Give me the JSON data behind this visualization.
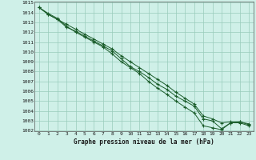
{
  "xlabel": "Graphe pression niveau de la mer (hPa)",
  "ylim": [
    1002,
    1015
  ],
  "xlim": [
    -0.5,
    23.5
  ],
  "yticks": [
    1002,
    1003,
    1004,
    1005,
    1006,
    1007,
    1008,
    1009,
    1010,
    1011,
    1012,
    1013,
    1014,
    1015
  ],
  "xticks": [
    0,
    1,
    2,
    3,
    4,
    5,
    6,
    7,
    8,
    9,
    10,
    11,
    12,
    13,
    14,
    15,
    16,
    17,
    18,
    19,
    20,
    21,
    22,
    23
  ],
  "background_color": "#cff0e8",
  "grid_color": "#99ccbb",
  "line_color": "#1a5c2a",
  "line1_x": [
    0,
    1,
    2,
    3,
    4,
    5,
    6,
    7,
    8,
    9,
    10,
    11,
    12,
    13,
    14,
    15,
    16,
    17,
    18,
    19,
    20,
    21,
    22,
    23
  ],
  "line1_y": [
    1014.5,
    1013.8,
    1013.3,
    1012.5,
    1012.1,
    1011.6,
    1011.1,
    1010.6,
    1010.1,
    1009.3,
    1008.5,
    1008.0,
    1007.4,
    1006.7,
    1006.2,
    1005.5,
    1005.0,
    1004.5,
    1003.2,
    1003.0,
    1002.2,
    1002.8,
    1002.8,
    1002.5
  ],
  "line2_x": [
    0,
    1,
    2,
    3,
    4,
    5,
    6,
    7,
    8,
    9,
    10,
    11,
    12,
    13,
    14,
    15,
    16,
    17,
    18,
    19,
    20,
    21,
    22,
    23
  ],
  "line2_y": [
    1014.5,
    1013.8,
    1013.3,
    1012.8,
    1012.3,
    1011.8,
    1011.3,
    1010.8,
    1010.3,
    1009.6,
    1009.0,
    1008.4,
    1007.8,
    1007.2,
    1006.6,
    1005.9,
    1005.3,
    1004.7,
    1003.5,
    1003.2,
    1002.8,
    1002.9,
    1002.9,
    1002.7
  ],
  "line3_x": [
    0,
    1,
    2,
    3,
    4,
    5,
    6,
    7,
    8,
    9,
    10,
    11,
    12,
    13,
    14,
    15,
    16,
    17,
    18,
    19,
    20,
    21,
    22,
    23
  ],
  "line3_y": [
    1014.5,
    1013.9,
    1013.4,
    1012.6,
    1012.0,
    1011.5,
    1011.0,
    1010.5,
    1009.8,
    1009.0,
    1008.4,
    1007.8,
    1007.0,
    1006.3,
    1005.7,
    1005.0,
    1004.4,
    1003.8,
    1002.5,
    1002.3,
    1002.1,
    1002.8,
    1002.9,
    1002.6
  ]
}
